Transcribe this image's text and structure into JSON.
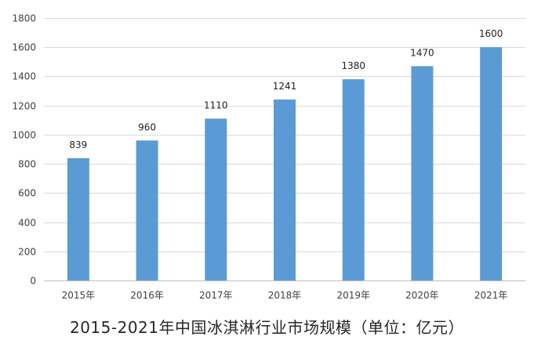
{
  "chart_data": {
    "type": "bar",
    "title": "2015-2021年中国冰淇淋行业市场规模（单位：亿元）",
    "xlabel": "",
    "ylabel": "",
    "categories": [
      "2015年",
      "2016年",
      "2017年",
      "2018年",
      "2019年",
      "2020年",
      "2021年"
    ],
    "values": [
      839,
      960,
      1110,
      1241,
      1380,
      1470,
      1600
    ],
    "data_labels": [
      "839",
      "960",
      "1110",
      "1241",
      "1380",
      "1470",
      "1600"
    ],
    "ylim": [
      0,
      1800
    ],
    "yticks": [
      0,
      200,
      400,
      600,
      800,
      1000,
      1200,
      1400,
      1600,
      1800
    ],
    "ytick_labels": [
      "0",
      "200",
      "400",
      "600",
      "800",
      "1000",
      "1200",
      "1400",
      "1600",
      "1800"
    ],
    "grid": true,
    "legend": "none",
    "bar_color": "#5b9bd5"
  }
}
